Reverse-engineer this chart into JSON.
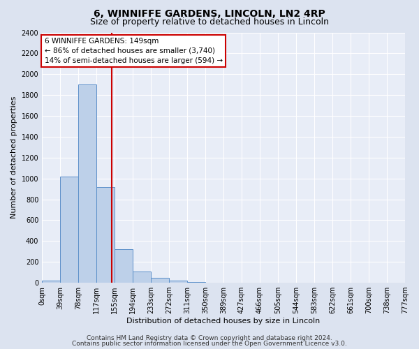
{
  "title": "6, WINNIFFE GARDENS, LINCOLN, LN2 4RP",
  "subtitle": "Size of property relative to detached houses in Lincoln",
  "xlabel": "Distribution of detached houses by size in Lincoln",
  "ylabel": "Number of detached properties",
  "bin_edges": [
    0,
    39,
    78,
    117,
    155,
    194,
    233,
    272,
    311,
    350,
    389,
    427,
    466,
    505,
    544,
    583,
    622,
    661,
    700,
    738,
    777
  ],
  "bin_heights": [
    20,
    1020,
    1900,
    920,
    320,
    105,
    50,
    20,
    5,
    0,
    0,
    0,
    0,
    0,
    0,
    0,
    0,
    0,
    0,
    0
  ],
  "vline_x": 149,
  "annotation_text": "6 WINNIFFE GARDENS: 149sqm\n← 86% of detached houses are smaller (3,740)\n14% of semi-detached houses are larger (594) →",
  "bar_color": "#bdd0e9",
  "bar_edge_color": "#5b8fc9",
  "vline_color": "#cc0000",
  "annotation_box_color": "#ffffff",
  "annotation_box_edge": "#cc0000",
  "ylim": [
    0,
    2400
  ],
  "yticks": [
    0,
    200,
    400,
    600,
    800,
    1000,
    1200,
    1400,
    1600,
    1800,
    2000,
    2200,
    2400
  ],
  "xtick_labels": [
    "0sqm",
    "39sqm",
    "78sqm",
    "117sqm",
    "155sqm",
    "194sqm",
    "233sqm",
    "272sqm",
    "311sqm",
    "350sqm",
    "389sqm",
    "427sqm",
    "466sqm",
    "505sqm",
    "544sqm",
    "583sqm",
    "622sqm",
    "661sqm",
    "700sqm",
    "738sqm",
    "777sqm"
  ],
  "footer1": "Contains HM Land Registry data © Crown copyright and database right 2024.",
  "footer2": "Contains public sector information licensed under the Open Government Licence v3.0.",
  "fig_background": "#dce3f0",
  "plot_background": "#e8edf7",
  "grid_color": "#ffffff",
  "title_fontsize": 10,
  "subtitle_fontsize": 9,
  "axis_label_fontsize": 8,
  "tick_fontsize": 7,
  "annotation_fontsize": 7.5,
  "footer_fontsize": 6.5
}
